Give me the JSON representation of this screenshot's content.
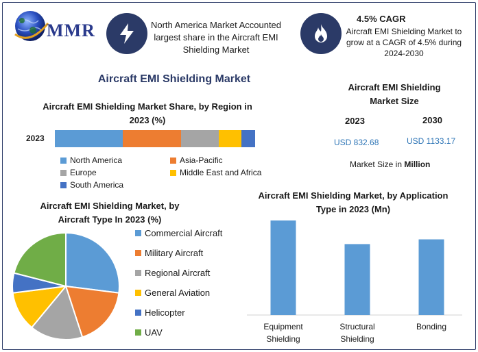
{
  "brand": {
    "logo_text": "MMR"
  },
  "header": {
    "highlight1": "North America Market Accounted largest share in the Aircraft EMI Shielding Market",
    "highlight2_title": "4.5% CAGR",
    "highlight2_text": "Aircraft EMI Shielding Market to grow at a CAGR of 4.5% during 2024-2030"
  },
  "main_title": "Aircraft EMI Shielding Market",
  "market_size": {
    "title": "Aircraft EMI Shielding Market Size",
    "year1": "2023",
    "year2": "2030",
    "value1": "USD 832.68",
    "value2": "USD 1133.17",
    "note_prefix": "Market Size in",
    "note_unit": "Million"
  },
  "colors": {
    "blue": "#5b9bd5",
    "orange": "#ed7d31",
    "gray": "#a5a5a5",
    "yellow": "#ffc000",
    "darkblue": "#4472c4",
    "green": "#70ad47",
    "navy": "#2b3a67"
  },
  "chart_data": [
    {
      "type": "bar",
      "orientation": "horizontal-stacked",
      "title": "Aircraft EMI Shielding Market Share, by Region in 2023 (%)",
      "categories": [
        "2023"
      ],
      "series": [
        {
          "name": "North America",
          "values": [
            34
          ],
          "color": "#5b9bd5"
        },
        {
          "name": "Asia-Pacific",
          "values": [
            29
          ],
          "color": "#ed7d31"
        },
        {
          "name": "Europe",
          "values": [
            19
          ],
          "color": "#a5a5a5"
        },
        {
          "name": "Middle East and Africa",
          "values": [
            11
          ],
          "color": "#ffc000"
        },
        {
          "name": "South America",
          "values": [
            7
          ],
          "color": "#4472c4"
        }
      ],
      "legend": "bottom"
    },
    {
      "type": "pie",
      "title": "Aircraft EMI Shielding Market, by Aircraft Type In 2023 (%)",
      "labels": [
        "Commercial Aircraft",
        "Military Aircraft",
        "Regional Aircraft",
        "General Aviation",
        "Helicopter",
        "UAV"
      ],
      "values": [
        27,
        18,
        16,
        12,
        6,
        21
      ],
      "colors": [
        "#5b9bd5",
        "#ed7d31",
        "#a5a5a5",
        "#ffc000",
        "#4472c4",
        "#70ad47"
      ],
      "legend": "right"
    },
    {
      "type": "bar",
      "title": "Aircraft EMI Shielding Market, by Application Type in 2023 (Mn)",
      "categories": [
        "Equipment Shielding",
        "Structural Shielding",
        "Bonding"
      ],
      "values": [
        400,
        300,
        320
      ],
      "ylim": [
        0,
        420
      ],
      "color": "#5b9bd5"
    }
  ]
}
